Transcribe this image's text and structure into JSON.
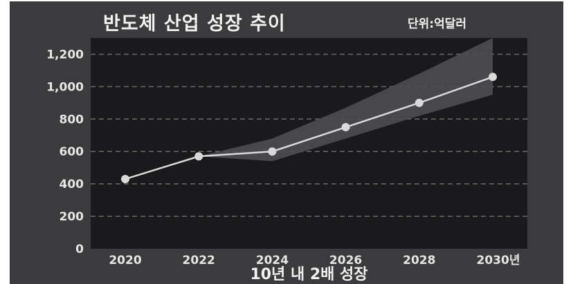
{
  "chart_data": {
    "type": "line",
    "title": "반도체 산업 성장 추이",
    "unit": "단위:억달러",
    "xlabel": "10년 내 2배 성장",
    "ylabel": "",
    "x": [
      "2020",
      "2022",
      "2024",
      "2026",
      "2028",
      "2030년"
    ],
    "series": [
      {
        "values": [
          430,
          570,
          600,
          750,
          900,
          1060
        ]
      }
    ],
    "band": {
      "x": [
        "2022",
        "2024",
        "2026",
        "2028",
        "2030년"
      ],
      "upper": [
        570,
        680,
        870,
        1080,
        1300
      ],
      "lower": [
        570,
        540,
        680,
        820,
        950
      ]
    },
    "ylim": [
      0,
      1300
    ],
    "yticks": [
      "0",
      "200",
      "400",
      "600",
      "800",
      "1,000",
      "1,200"
    ],
    "ytick_values": [
      0,
      200,
      400,
      600,
      800,
      1000,
      1200
    ],
    "grid": true,
    "colors": {
      "card_bg": "#3b3b3d",
      "plot_bg": "#1a1a1c",
      "line": "#d9d9d9",
      "band": "#4e4e52",
      "grid": "#6a6a6a"
    }
  }
}
